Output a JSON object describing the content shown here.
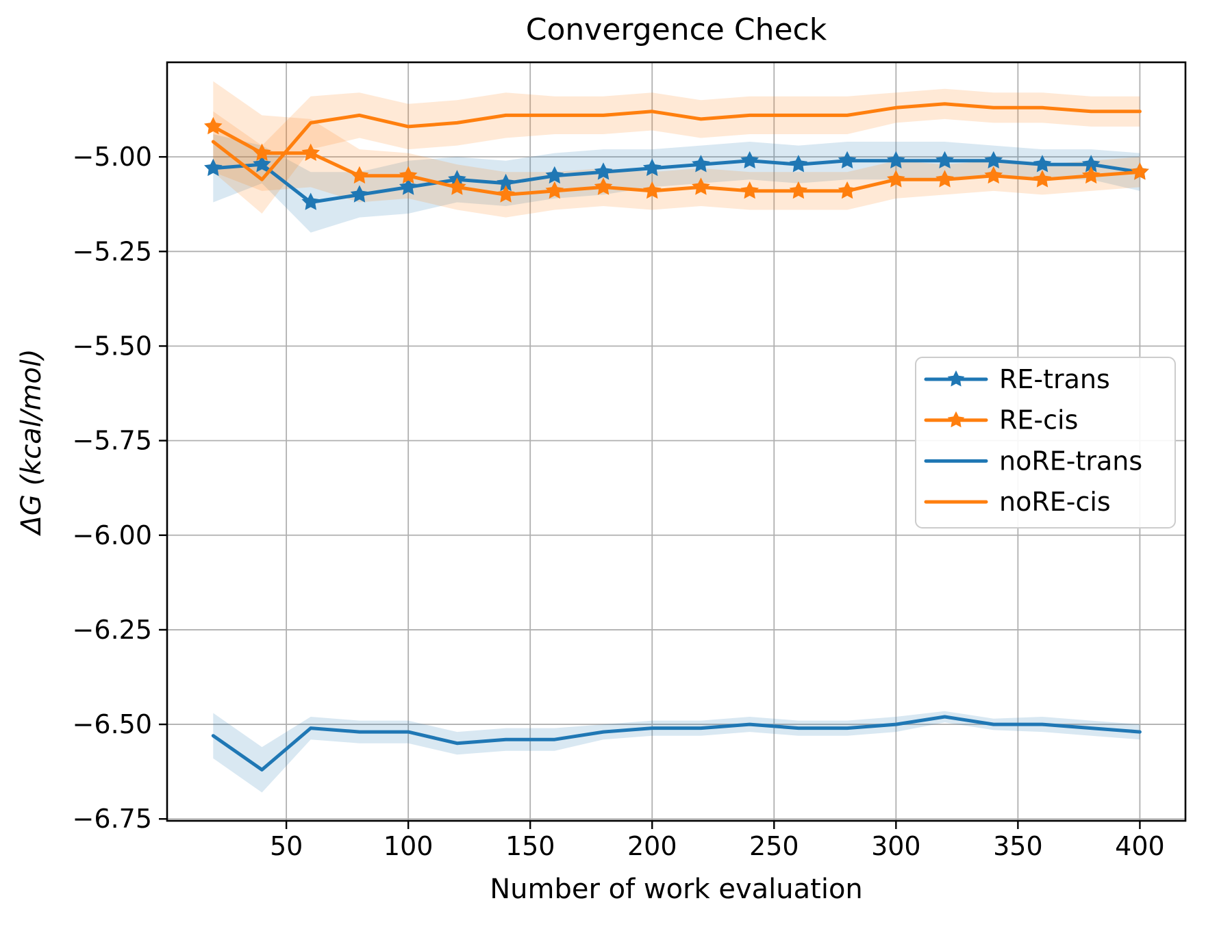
{
  "title": "Convergence Check",
  "axes": {
    "xlabel": "Number of work evaluation",
    "ylabel": "ΔG (kcal/mol)"
  },
  "colors": {
    "blue": "#1f77b4",
    "orange": "#ff7f0e",
    "grid": "#b0b0b0",
    "spine": "#000000",
    "legend_border": "#cccccc",
    "background": "#ffffff"
  },
  "chart_data": {
    "type": "line",
    "title": "Convergence Check",
    "xlabel": "Number of work evaluation",
    "ylabel": "ΔG (kcal/mol)",
    "grid": true,
    "legend_position": "center-right",
    "xlim": [
      1.1,
      418.7
    ],
    "ylim": [
      -6.755,
      -4.75
    ],
    "xticks": [
      50,
      100,
      150,
      200,
      250,
      300,
      350,
      400
    ],
    "xtick_labels": [
      "50",
      "100",
      "150",
      "200",
      "250",
      "300",
      "350",
      "400"
    ],
    "yticks": [
      -5.0,
      -5.25,
      -5.5,
      -5.75,
      -6.0,
      -6.25,
      -6.5,
      -6.75
    ],
    "ytick_labels": [
      "−5.00",
      "−5.25",
      "−5.50",
      "−5.75",
      "−6.00",
      "−6.25",
      "−6.50",
      "−6.75"
    ],
    "x": [
      20,
      40,
      60,
      80,
      100,
      120,
      140,
      160,
      180,
      200,
      220,
      240,
      260,
      280,
      300,
      320,
      340,
      360,
      380,
      400
    ],
    "series": [
      {
        "name": "RE-trans",
        "color": "#1f77b4",
        "marker": "star",
        "values": [
          -5.03,
          -5.02,
          -5.12,
          -5.1,
          -5.08,
          -5.06,
          -5.07,
          -5.05,
          -5.04,
          -5.03,
          -5.02,
          -5.01,
          -5.02,
          -5.01,
          -5.01,
          -5.01,
          -5.01,
          -5.02,
          -5.02,
          -5.04
        ],
        "band_halfwidth": [
          0.09,
          0.05,
          0.08,
          0.06,
          0.07,
          0.06,
          0.06,
          0.06,
          0.06,
          0.05,
          0.05,
          0.05,
          0.05,
          0.05,
          0.05,
          0.05,
          0.04,
          0.04,
          0.04,
          0.05
        ]
      },
      {
        "name": "RE-cis",
        "color": "#ff7f0e",
        "marker": "star",
        "values": [
          -4.92,
          -4.99,
          -4.99,
          -5.05,
          -5.05,
          -5.08,
          -5.1,
          -5.09,
          -5.08,
          -5.09,
          -5.08,
          -5.09,
          -5.09,
          -5.09,
          -5.06,
          -5.06,
          -5.05,
          -5.06,
          -5.05,
          -5.04
        ],
        "band_halfwidth": [
          0.12,
          0.1,
          0.09,
          0.07,
          0.06,
          0.06,
          0.06,
          0.05,
          0.05,
          0.05,
          0.05,
          0.05,
          0.05,
          0.05,
          0.05,
          0.04,
          0.04,
          0.04,
          0.04,
          0.04
        ]
      },
      {
        "name": "noRE-trans",
        "color": "#1f77b4",
        "marker": null,
        "values": [
          -6.53,
          -6.62,
          -6.51,
          -6.52,
          -6.52,
          -6.55,
          -6.54,
          -6.54,
          -6.52,
          -6.51,
          -6.51,
          -6.5,
          -6.51,
          -6.51,
          -6.5,
          -6.48,
          -6.5,
          -6.5,
          -6.51,
          -6.52
        ],
        "band_halfwidth": [
          0.06,
          0.06,
          0.03,
          0.03,
          0.03,
          0.03,
          0.03,
          0.03,
          0.02,
          0.02,
          0.02,
          0.02,
          0.02,
          0.02,
          0.02,
          0.015,
          0.015,
          0.02,
          0.02,
          0.02
        ]
      },
      {
        "name": "noRE-cis",
        "color": "#ff7f0e",
        "marker": null,
        "values": [
          -4.96,
          -5.06,
          -4.91,
          -4.89,
          -4.92,
          -4.91,
          -4.89,
          -4.89,
          -4.89,
          -4.88,
          -4.9,
          -4.89,
          -4.89,
          -4.89,
          -4.87,
          -4.86,
          -4.87,
          -4.87,
          -4.88,
          -4.88
        ],
        "band_halfwidth": [
          0.08,
          0.09,
          0.07,
          0.06,
          0.06,
          0.06,
          0.06,
          0.05,
          0.05,
          0.05,
          0.05,
          0.05,
          0.05,
          0.05,
          0.04,
          0.04,
          0.04,
          0.04,
          0.04,
          0.04
        ]
      }
    ]
  }
}
